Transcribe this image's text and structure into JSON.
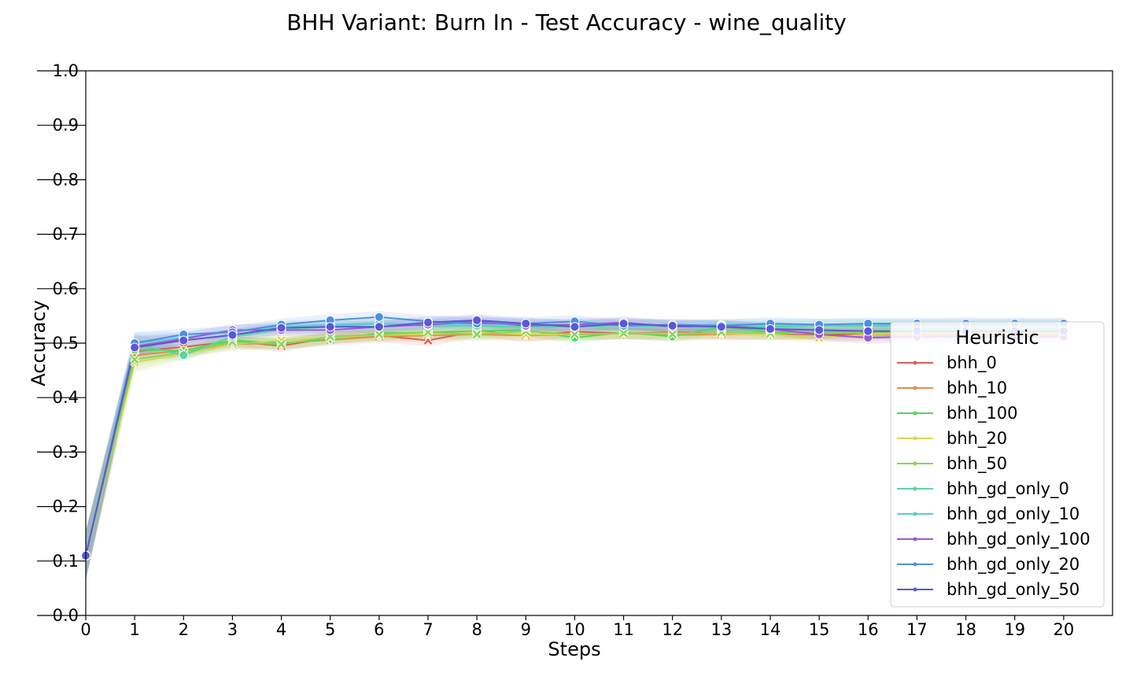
{
  "chart_data": {
    "type": "line",
    "title": "BHH Variant: Burn In - Test Accuracy - wine_quality",
    "xlabel": "Steps",
    "ylabel": "Accuracy",
    "xlim": [
      0,
      21
    ],
    "ylim": [
      0,
      1
    ],
    "x": [
      0,
      1,
      2,
      3,
      4,
      5,
      6,
      7,
      8,
      9,
      10,
      11,
      12,
      13,
      14,
      15,
      16,
      17,
      18,
      19,
      20
    ],
    "x_ticks": [
      "0",
      "1",
      "2",
      "3",
      "4",
      "5",
      "6",
      "7",
      "8",
      "9",
      "10",
      "11",
      "12",
      "13",
      "14",
      "15",
      "16",
      "17",
      "18",
      "19",
      "20"
    ],
    "y_ticks": [
      "0.0",
      "0.1",
      "0.2",
      "0.3",
      "0.4",
      "0.5",
      "0.6",
      "0.7",
      "0.8",
      "0.9",
      "1.0"
    ],
    "grid": false,
    "legend": {
      "title": "Heuristic",
      "position": "lower-right"
    },
    "series": [
      {
        "name": "bhh_0",
        "color": "#db5f57",
        "marker": "x",
        "values": [
          0.11,
          0.485,
          0.493,
          0.503,
          0.495,
          0.51,
          0.514,
          0.505,
          0.522,
          0.514,
          0.521,
          0.518,
          0.52,
          0.518,
          0.517,
          0.516,
          0.516,
          0.516,
          0.516,
          0.516,
          0.516
        ]
      },
      {
        "name": "bhh_10",
        "color": "#e0904f",
        "marker": "x",
        "values": [
          0.11,
          0.478,
          0.486,
          0.498,
          0.5,
          0.506,
          0.512,
          0.514,
          0.516,
          0.514,
          0.516,
          0.518,
          0.515,
          0.516,
          0.518,
          0.518,
          0.52,
          0.52,
          0.52,
          0.52,
          0.52
        ]
      },
      {
        "name": "bhh_100",
        "color": "#53d65b",
        "marker": "o",
        "values": [
          0.11,
          0.488,
          0.486,
          0.505,
          0.5,
          0.508,
          0.518,
          0.52,
          0.522,
          0.524,
          0.51,
          0.52,
          0.512,
          0.53,
          0.52,
          0.52,
          0.522,
          0.522,
          0.522,
          0.522,
          0.522
        ]
      },
      {
        "name": "bhh_20",
        "color": "#d6d658",
        "marker": "x",
        "values": [
          0.11,
          0.465,
          0.48,
          0.498,
          0.505,
          0.51,
          0.515,
          0.516,
          0.52,
          0.516,
          0.516,
          0.518,
          0.518,
          0.518,
          0.516,
          0.51,
          0.516,
          0.518,
          0.518,
          0.518,
          0.518
        ]
      },
      {
        "name": "bhh_50",
        "color": "#8ad655",
        "marker": "x",
        "values": [
          0.11,
          0.47,
          0.483,
          0.502,
          0.498,
          0.512,
          0.516,
          0.52,
          0.516,
          0.522,
          0.516,
          0.518,
          0.516,
          0.52,
          0.518,
          0.518,
          0.52,
          0.52,
          0.52,
          0.52,
          0.52
        ]
      },
      {
        "name": "bhh_gd_only_0",
        "color": "#57d6a0",
        "marker": "o",
        "values": [
          0.11,
          0.498,
          0.478,
          0.512,
          0.525,
          0.53,
          0.536,
          0.532,
          0.532,
          0.53,
          0.53,
          0.532,
          0.53,
          0.532,
          0.53,
          0.532,
          0.532,
          0.532,
          0.532,
          0.532,
          0.532
        ]
      },
      {
        "name": "bhh_gd_only_10",
        "color": "#57cdd6",
        "marker": "o",
        "values": [
          0.11,
          0.5,
          0.51,
          0.522,
          0.53,
          0.534,
          0.536,
          0.534,
          0.536,
          0.534,
          0.534,
          0.534,
          0.532,
          0.534,
          0.534,
          0.534,
          0.534,
          0.534,
          0.534,
          0.534,
          0.534
        ]
      },
      {
        "name": "bhh_gd_only_100",
        "color": "#a057d6",
        "marker": "o",
        "values": [
          0.11,
          0.494,
          0.508,
          0.524,
          0.524,
          0.524,
          0.53,
          0.534,
          0.54,
          0.532,
          0.534,
          0.538,
          0.53,
          0.532,
          0.526,
          0.516,
          0.51,
          0.512,
          0.512,
          0.512,
          0.512
        ]
      },
      {
        "name": "bhh_gd_only_20",
        "color": "#4f8fe0",
        "marker": "o",
        "values": [
          0.11,
          0.5,
          0.516,
          0.52,
          0.534,
          0.542,
          0.548,
          0.54,
          0.536,
          0.536,
          0.54,
          0.532,
          0.534,
          0.532,
          0.536,
          0.534,
          0.536,
          0.536,
          0.536,
          0.536,
          0.536
        ]
      },
      {
        "name": "bhh_gd_only_50",
        "color": "#5c57d6",
        "marker": "o",
        "values": [
          0.11,
          0.492,
          0.505,
          0.515,
          0.528,
          0.53,
          0.53,
          0.538,
          0.542,
          0.536,
          0.53,
          0.536,
          0.532,
          0.53,
          0.526,
          0.524,
          0.522,
          0.522,
          0.522,
          0.522,
          0.522
        ]
      }
    ]
  }
}
